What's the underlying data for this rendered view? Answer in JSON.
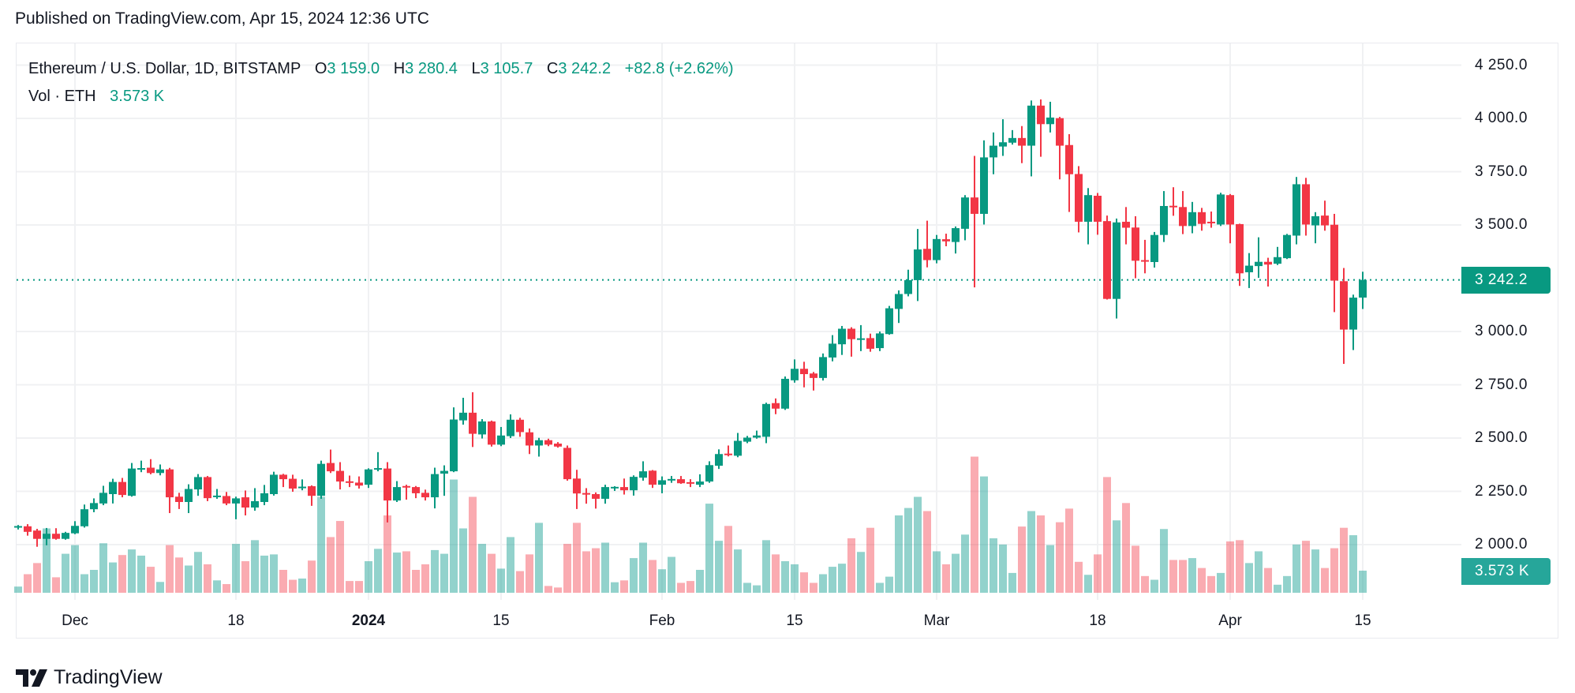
{
  "header": {
    "published": "Published on TradingView.com, Apr 15, 2024 12:36 UTC"
  },
  "legend": {
    "symbol": "Ethereum / U.S. Dollar, 1D, BITSTAMP",
    "o_label": "O",
    "o_value": "3 159.0",
    "h_label": "H",
    "h_value": "3 280.4",
    "l_label": "L",
    "l_value": "3 105.7",
    "c_label": "C",
    "c_value": "3 242.2",
    "change": "+82.8 (+2.62%)",
    "vol_label": "Vol · ETH",
    "vol_value": "3.573 K"
  },
  "tags": {
    "last_price": "3 242.2",
    "last_volume": "3.573 K"
  },
  "branding": {
    "logo_text": "TradingView"
  },
  "colors": {
    "up": "#089981",
    "down": "#F23645",
    "volume_up": "#26a69a",
    "grid": "#f0f1f3",
    "text": "#131722"
  },
  "chart_data": {
    "type": "candlestick",
    "title": "Ethereum / U.S. Dollar, 1D, BITSTAMP",
    "interval": "1D",
    "ylim": [
      2000,
      4250
    ],
    "grid": true,
    "last_price": 3242.2,
    "price_ticks": [
      {
        "value": 4250,
        "label": "4 250.0"
      },
      {
        "value": 4000,
        "label": "4 000.0"
      },
      {
        "value": 3750,
        "label": "3 750.0"
      },
      {
        "value": 3500,
        "label": "3 500.0"
      },
      {
        "value": 3000,
        "label": "3 000.0"
      },
      {
        "value": 2750,
        "label": "2 750.0"
      },
      {
        "value": 2500,
        "label": "2 500.0"
      },
      {
        "value": 2250,
        "label": "2 250.0"
      },
      {
        "value": 2000,
        "label": "2 000.0"
      }
    ],
    "time_ticks": [
      {
        "date": "2023-12-01",
        "label": "Dec",
        "bold": false
      },
      {
        "date": "2023-12-18",
        "label": "18",
        "bold": false
      },
      {
        "date": "2024-01-01",
        "label": "2024",
        "bold": true
      },
      {
        "date": "2024-01-15",
        "label": "15",
        "bold": false
      },
      {
        "date": "2024-02-01",
        "label": "Feb",
        "bold": false
      },
      {
        "date": "2024-02-15",
        "label": "15",
        "bold": false
      },
      {
        "date": "2024-03-01",
        "label": "Mar",
        "bold": false
      },
      {
        "date": "2024-03-18",
        "label": "18",
        "bold": false
      },
      {
        "date": "2024-04-01",
        "label": "Apr",
        "bold": false
      },
      {
        "date": "2024-04-15",
        "label": "15",
        "bold": false
      }
    ],
    "columns": [
      "date",
      "open",
      "high",
      "low",
      "close",
      "volume_k"
    ],
    "candles": [
      [
        "2023-11-25",
        2084,
        2092,
        2071,
        2087,
        1.0
      ],
      [
        "2023-11-26",
        2086,
        2096,
        2042,
        2060,
        3.0
      ],
      [
        "2023-11-27",
        2066,
        2074,
        1990,
        2027,
        4.8
      ],
      [
        "2023-11-28",
        2027,
        2078,
        1997,
        2051,
        10.4
      ],
      [
        "2023-11-29",
        2051,
        2077,
        2023,
        2027,
        2.5
      ],
      [
        "2023-11-30",
        2027,
        2060,
        2023,
        2055,
        6.3
      ],
      [
        "2023-12-01",
        2053,
        2110,
        2049,
        2088,
        7.7
      ],
      [
        "2023-12-02",
        2086,
        2188,
        2080,
        2166,
        3.0
      ],
      [
        "2023-12-03",
        2166,
        2217,
        2152,
        2195,
        3.7
      ],
      [
        "2023-12-04",
        2193,
        2276,
        2185,
        2243,
        8.0
      ],
      [
        "2023-12-05",
        2237,
        2309,
        2193,
        2294,
        4.9
      ],
      [
        "2023-12-06",
        2294,
        2313,
        2222,
        2233,
        6.1
      ],
      [
        "2023-12-07",
        2229,
        2383,
        2225,
        2357,
        7.0
      ],
      [
        "2023-12-08",
        2356,
        2394,
        2340,
        2359,
        6.0
      ],
      [
        "2023-12-09",
        2361,
        2401,
        2330,
        2336,
        4.2
      ],
      [
        "2023-12-10",
        2336,
        2376,
        2325,
        2353,
        1.75
      ],
      [
        "2023-12-11",
        2353,
        2360,
        2148,
        2222,
        7.7
      ],
      [
        "2023-12-12",
        2225,
        2243,
        2167,
        2200,
        5.7
      ],
      [
        "2023-12-13",
        2200,
        2283,
        2148,
        2261,
        4.4
      ],
      [
        "2023-12-14",
        2259,
        2331,
        2229,
        2317,
        6.6
      ],
      [
        "2023-12-15",
        2317,
        2322,
        2204,
        2218,
        4.6
      ],
      [
        "2023-12-16",
        2227,
        2261,
        2215,
        2230,
        2.0
      ],
      [
        "2023-12-17",
        2228,
        2247,
        2185,
        2193,
        1.4
      ],
      [
        "2023-12-18",
        2193,
        2225,
        2119,
        2217,
        7.9
      ],
      [
        "2023-12-19",
        2222,
        2254,
        2137,
        2174,
        5.1
      ],
      [
        "2023-12-20",
        2174,
        2265,
        2159,
        2204,
        8.5
      ],
      [
        "2023-12-21",
        2200,
        2280,
        2185,
        2241,
        6.0
      ],
      [
        "2023-12-22",
        2237,
        2342,
        2230,
        2328,
        6.2
      ],
      [
        "2023-12-23",
        2328,
        2332,
        2270,
        2307,
        3.7
      ],
      [
        "2023-12-24",
        2309,
        2328,
        2248,
        2263,
        2.1
      ],
      [
        "2023-12-25",
        2268,
        2306,
        2255,
        2272,
        2.3
      ],
      [
        "2023-12-26",
        2274,
        2278,
        2182,
        2229,
        5.2
      ],
      [
        "2023-12-27",
        2229,
        2394,
        2215,
        2379,
        15.5
      ],
      [
        "2023-12-28",
        2383,
        2446,
        2336,
        2344,
        9.0
      ],
      [
        "2023-12-29",
        2346,
        2387,
        2259,
        2296,
        11.6
      ],
      [
        "2023-12-30",
        2297,
        2324,
        2270,
        2293,
        1.9
      ],
      [
        "2023-12-31",
        2291,
        2320,
        2263,
        2277,
        1.9
      ],
      [
        "2024-01-01",
        2281,
        2358,
        2266,
        2353,
        5.1
      ],
      [
        "2024-01-02",
        2356,
        2434,
        2344,
        2359,
        7.1
      ],
      [
        "2024-01-03",
        2357,
        2387,
        2104,
        2207,
        12.5
      ],
      [
        "2024-01-04",
        2207,
        2298,
        2200,
        2270,
        6.5
      ],
      [
        "2024-01-05",
        2275,
        2281,
        2211,
        2272,
        6.7
      ],
      [
        "2024-01-06",
        2270,
        2275,
        2218,
        2241,
        3.7
      ],
      [
        "2024-01-07",
        2243,
        2258,
        2207,
        2222,
        4.6
      ],
      [
        "2024-01-08",
        2222,
        2361,
        2170,
        2331,
        6.9
      ],
      [
        "2024-01-09",
        2333,
        2372,
        2229,
        2346,
        6.3
      ],
      [
        "2024-01-10",
        2344,
        2644,
        2340,
        2587,
        18.3
      ],
      [
        "2024-01-11",
        2583,
        2689,
        2563,
        2619,
        10.4
      ],
      [
        "2024-01-12",
        2619,
        2715,
        2458,
        2520,
        15.5
      ],
      [
        "2024-01-13",
        2517,
        2589,
        2498,
        2578,
        7.9
      ],
      [
        "2024-01-14",
        2578,
        2582,
        2460,
        2469,
        6.3
      ],
      [
        "2024-01-15",
        2469,
        2552,
        2462,
        2512,
        3.9
      ],
      [
        "2024-01-16",
        2509,
        2611,
        2500,
        2586,
        9.0
      ],
      [
        "2024-01-17",
        2586,
        2595,
        2506,
        2528,
        3.5
      ],
      [
        "2024-01-18",
        2527,
        2545,
        2425,
        2465,
        6.2
      ],
      [
        "2024-01-19",
        2465,
        2501,
        2413,
        2490,
        11.3
      ],
      [
        "2024-01-20",
        2490,
        2497,
        2462,
        2469,
        1.1
      ],
      [
        "2024-01-21",
        2474,
        2481,
        2455,
        2460,
        0.85
      ],
      [
        "2024-01-22",
        2454,
        2465,
        2300,
        2307,
        7.9
      ],
      [
        "2024-01-23",
        2310,
        2351,
        2167,
        2240,
        11.3
      ],
      [
        "2024-01-24",
        2242,
        2265,
        2192,
        2238,
        6.7
      ],
      [
        "2024-01-25",
        2237,
        2245,
        2169,
        2215,
        7.2
      ],
      [
        "2024-01-26",
        2215,
        2281,
        2192,
        2270,
        8.1
      ],
      [
        "2024-01-27",
        2268,
        2274,
        2252,
        2271,
        1.7
      ],
      [
        "2024-01-28",
        2270,
        2310,
        2235,
        2255,
        2.0
      ],
      [
        "2024-01-29",
        2255,
        2325,
        2230,
        2318,
        5.6
      ],
      [
        "2024-01-30",
        2314,
        2391,
        2300,
        2344,
        8.1
      ],
      [
        "2024-01-31",
        2347,
        2350,
        2266,
        2281,
        5.3
      ],
      [
        "2024-02-01",
        2281,
        2320,
        2241,
        2302,
        3.8
      ],
      [
        "2024-02-02",
        2306,
        2322,
        2290,
        2308,
        5.8
      ],
      [
        "2024-02-03",
        2307,
        2322,
        2285,
        2288,
        1.6
      ],
      [
        "2024-02-04",
        2293,
        2307,
        2270,
        2290,
        1.9
      ],
      [
        "2024-02-05",
        2281,
        2330,
        2270,
        2296,
        3.7
      ],
      [
        "2024-02-06",
        2296,
        2391,
        2290,
        2373,
        14.4
      ],
      [
        "2024-02-07",
        2370,
        2447,
        2355,
        2425,
        8.4
      ],
      [
        "2024-02-08",
        2427,
        2465,
        2414,
        2423,
        10.8
      ],
      [
        "2024-02-09",
        2417,
        2524,
        2410,
        2487,
        7.0
      ],
      [
        "2024-02-10",
        2483,
        2510,
        2476,
        2502,
        1.6
      ],
      [
        "2024-02-11",
        2502,
        2535,
        2497,
        2512,
        1.2
      ],
      [
        "2024-02-12",
        2506,
        2666,
        2476,
        2660,
        8.5
      ],
      [
        "2024-02-13",
        2664,
        2686,
        2612,
        2638,
        6.2
      ],
      [
        "2024-02-14",
        2638,
        2789,
        2632,
        2778,
        5.1
      ],
      [
        "2024-02-15",
        2771,
        2869,
        2760,
        2825,
        4.6
      ],
      [
        "2024-02-16",
        2825,
        2858,
        2738,
        2800,
        3.3
      ],
      [
        "2024-02-17",
        2803,
        2810,
        2723,
        2782,
        1.6
      ],
      [
        "2024-02-18",
        2782,
        2897,
        2770,
        2880,
        3.0
      ],
      [
        "2024-02-19",
        2878,
        2983,
        2860,
        2943,
        4.2
      ],
      [
        "2024-02-20",
        2940,
        3026,
        2890,
        3013,
        4.7
      ],
      [
        "2024-02-21",
        3013,
        3020,
        2882,
        2964,
        8.8
      ],
      [
        "2024-02-22",
        2965,
        3030,
        2908,
        2968,
        6.6
      ],
      [
        "2024-02-23",
        2969,
        2990,
        2905,
        2919,
        10.5
      ],
      [
        "2024-02-24",
        2922,
        3000,
        2908,
        2991,
        1.6
      ],
      [
        "2024-02-25",
        2988,
        3120,
        2985,
        3109,
        2.6
      ],
      [
        "2024-02-26",
        3106,
        3193,
        3040,
        3176,
        12.5
      ],
      [
        "2024-02-27",
        3176,
        3290,
        3165,
        3241,
        13.7
      ],
      [
        "2024-02-28",
        3241,
        3481,
        3143,
        3385,
        15.5
      ],
      [
        "2024-02-29",
        3388,
        3520,
        3301,
        3335,
        13.2
      ],
      [
        "2024-03-01",
        3335,
        3453,
        3320,
        3434,
        6.7
      ],
      [
        "2024-03-02",
        3433,
        3459,
        3400,
        3423,
        4.6
      ],
      [
        "2024-03-03",
        3420,
        3493,
        3366,
        3485,
        6.3
      ],
      [
        "2024-03-04",
        3482,
        3640,
        3428,
        3629,
        9.4
      ],
      [
        "2024-03-05",
        3629,
        3824,
        3207,
        3552,
        22.0
      ],
      [
        "2024-03-06",
        3552,
        3897,
        3502,
        3817,
        18.8
      ],
      [
        "2024-03-07",
        3817,
        3934,
        3738,
        3872,
        8.8
      ],
      [
        "2024-03-08",
        3868,
        3996,
        3824,
        3888,
        7.8
      ],
      [
        "2024-03-09",
        3886,
        3945,
        3877,
        3908,
        3.2
      ],
      [
        "2024-03-10",
        3908,
        3964,
        3790,
        3872,
        10.7
      ],
      [
        "2024-03-11",
        3872,
        4084,
        3728,
        4060,
        13.2
      ],
      [
        "2024-03-12",
        4060,
        4089,
        3820,
        3973,
        12.5
      ],
      [
        "2024-03-13",
        3973,
        4078,
        3934,
        4004,
        7.7
      ],
      [
        "2024-03-14",
        4001,
        4007,
        3714,
        3872,
        11.4
      ],
      [
        "2024-03-15",
        3875,
        3926,
        3561,
        3738,
        13.6
      ],
      [
        "2024-03-16",
        3739,
        3776,
        3465,
        3515,
        5.0
      ],
      [
        "2024-03-17",
        3515,
        3673,
        3409,
        3640,
        2.9
      ],
      [
        "2024-03-18",
        3637,
        3650,
        3454,
        3515,
        6.2
      ],
      [
        "2024-03-19",
        3518,
        3544,
        3150,
        3153,
        18.7
      ],
      [
        "2024-03-20",
        3153,
        3530,
        3061,
        3512,
        11.7
      ],
      [
        "2024-03-21",
        3515,
        3584,
        3409,
        3487,
        14.5
      ],
      [
        "2024-03-22",
        3488,
        3541,
        3250,
        3332,
        7.6
      ],
      [
        "2024-03-23",
        3335,
        3430,
        3273,
        3330,
        2.7
      ],
      [
        "2024-03-24",
        3326,
        3467,
        3300,
        3453,
        2.1
      ],
      [
        "2024-03-25",
        3453,
        3659,
        3420,
        3589,
        10.3
      ],
      [
        "2024-03-26",
        3590,
        3677,
        3543,
        3588,
        5.3
      ],
      [
        "2024-03-27",
        3584,
        3659,
        3457,
        3495,
        5.3
      ],
      [
        "2024-03-28",
        3495,
        3608,
        3461,
        3560,
        5.6
      ],
      [
        "2024-03-29",
        3560,
        3580,
        3473,
        3505,
        4.0
      ],
      [
        "2024-03-30",
        3515,
        3563,
        3487,
        3511,
        2.7
      ],
      [
        "2024-03-31",
        3502,
        3651,
        3495,
        3643,
        3.2
      ],
      [
        "2024-04-01",
        3640,
        3645,
        3414,
        3502,
        8.3
      ],
      [
        "2024-04-02",
        3504,
        3506,
        3214,
        3273,
        8.5
      ],
      [
        "2024-04-03",
        3278,
        3368,
        3204,
        3309,
        4.8
      ],
      [
        "2024-04-04",
        3307,
        3442,
        3252,
        3327,
        6.7
      ],
      [
        "2024-04-05",
        3327,
        3346,
        3211,
        3314,
        4.0
      ],
      [
        "2024-04-06",
        3318,
        3397,
        3312,
        3349,
        1.3
      ],
      [
        "2024-04-07",
        3344,
        3458,
        3340,
        3453,
        2.7
      ],
      [
        "2024-04-08",
        3450,
        3725,
        3409,
        3691,
        7.8
      ],
      [
        "2024-04-09",
        3691,
        3721,
        3450,
        3502,
        8.4
      ],
      [
        "2024-04-10",
        3498,
        3560,
        3414,
        3541,
        7.0
      ],
      [
        "2024-04-11",
        3544,
        3614,
        3473,
        3498,
        4.0
      ],
      [
        "2024-04-12",
        3501,
        3552,
        3091,
        3239,
        7.2
      ],
      [
        "2024-04-13",
        3236,
        3298,
        2848,
        3009,
        10.5
      ],
      [
        "2024-04-14",
        3009,
        3173,
        2913,
        3159,
        9.3
      ],
      [
        "2024-04-15",
        3159.0,
        3280.4,
        3105.7,
        3242.2,
        3.573
      ]
    ]
  }
}
